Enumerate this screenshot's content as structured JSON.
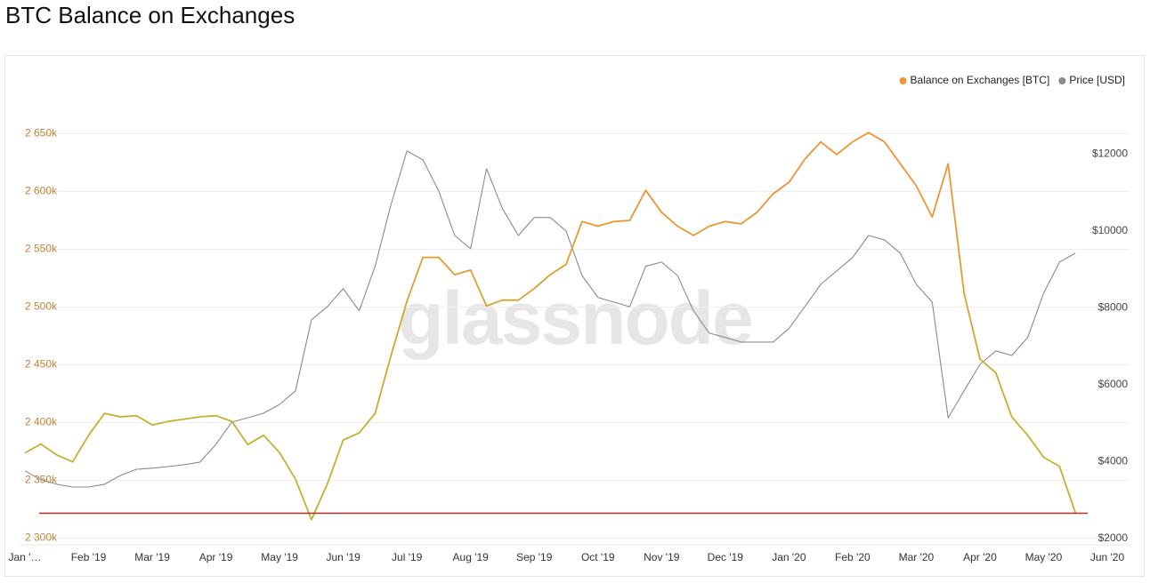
{
  "chart_data": {
    "type": "line",
    "title": "BTC Balance on Exchanges",
    "watermark": "glassnode",
    "categories": [
      "Jan '…",
      null,
      null,
      null,
      "Feb '19",
      null,
      null,
      null,
      "Mar '19",
      null,
      null,
      null,
      "Apr '19",
      null,
      null,
      null,
      "May '19",
      null,
      null,
      null,
      "Jun '19",
      null,
      null,
      null,
      "Jul '19",
      null,
      null,
      null,
      "Aug '19",
      null,
      null,
      null,
      "Sep '19",
      null,
      null,
      null,
      "Oct '19",
      null,
      null,
      null,
      "Nov '19",
      null,
      null,
      null,
      "Dec '19",
      null,
      null,
      null,
      "Jan '20",
      null,
      null,
      null,
      "Feb '20",
      null,
      null,
      null,
      "Mar '20",
      null,
      null,
      null,
      "Apr '20",
      null,
      null,
      null,
      "May '20",
      null,
      null,
      null,
      "Jun '20"
    ],
    "series": [
      {
        "name": "Balance on Exchanges [BTC]",
        "color": "#ef9333",
        "low_color": "#c4b12f",
        "axis": "y",
        "values": [
          2373800,
          2381500,
          2372000,
          2366000,
          2389000,
          2408000,
          2405000,
          2406000,
          2398000,
          2401000,
          2403000,
          2405000,
          2406000,
          2401000,
          2381000,
          2389000,
          2374000,
          2351000,
          2316000,
          2347000,
          2385000,
          2391000,
          2408000,
          2458000,
          2505000,
          2543000,
          2543000,
          2528000,
          2532000,
          2501000,
          2506000,
          2506000,
          2516000,
          2528000,
          2537000,
          2574000,
          2570000,
          2574000,
          2575000,
          2601000,
          2582000,
          2570000,
          2562000,
          2570000,
          2574000,
          2572000,
          2582000,
          2598000,
          2608000,
          2628000,
          2643000,
          2632000,
          2643000,
          2651000,
          2643000,
          2624000,
          2605000,
          2578000,
          2624000,
          2512000,
          2455000,
          2443000,
          2405000,
          2389000,
          2370000,
          2362000,
          2322000,
          null,
          null
        ]
      },
      {
        "name": "Price [USD]",
        "color": "#8a8a8a",
        "axis": "y2",
        "values": [
          3760,
          3530,
          3410,
          3340,
          3340,
          3410,
          3640,
          3800,
          3830,
          3870,
          3920,
          3990,
          4450,
          5030,
          5140,
          5260,
          5490,
          5840,
          7690,
          8030,
          8500,
          7920,
          9080,
          10690,
          12080,
          11850,
          11040,
          9880,
          9540,
          11620,
          10580,
          9880,
          10350,
          10350,
          10000,
          8840,
          8270,
          8150,
          8030,
          9080,
          9190,
          8840,
          7920,
          7340,
          7230,
          7110,
          7110,
          7110,
          7460,
          8030,
          8610,
          8960,
          9310,
          9880,
          9770,
          9420,
          8610,
          8150,
          5140,
          5840,
          6530,
          6880,
          6760,
          7230,
          8380,
          9190,
          9420,
          null,
          null
        ]
      }
    ],
    "reference_line": {
      "value": 2321500,
      "color": "#b0302a"
    },
    "ylim": [
      2295000,
      2695000
    ],
    "yticks": [
      {
        "value": 2300000,
        "label": "2 300k"
      },
      {
        "value": 2350000,
        "label": "2 350k"
      },
      {
        "value": 2400000,
        "label": "2 400k"
      },
      {
        "value": 2450000,
        "label": "2 450k"
      },
      {
        "value": 2500000,
        "label": "2 500k"
      },
      {
        "value": 2550000,
        "label": "2 550k"
      },
      {
        "value": 2600000,
        "label": "2 600k"
      },
      {
        "value": 2650000,
        "label": "2 650k"
      }
    ],
    "y2lim": [
      1860,
      13880
    ],
    "y2ticks": [
      {
        "value": 2000,
        "label": "$2000"
      },
      {
        "value": 4000,
        "label": "$4000"
      },
      {
        "value": 6000,
        "label": "$6000"
      },
      {
        "value": 8000,
        "label": "$8000"
      },
      {
        "value": 10000,
        "label": "$10000"
      },
      {
        "value": 12000,
        "label": "$12000"
      }
    ],
    "grid": true,
    "legend": "top-right"
  }
}
